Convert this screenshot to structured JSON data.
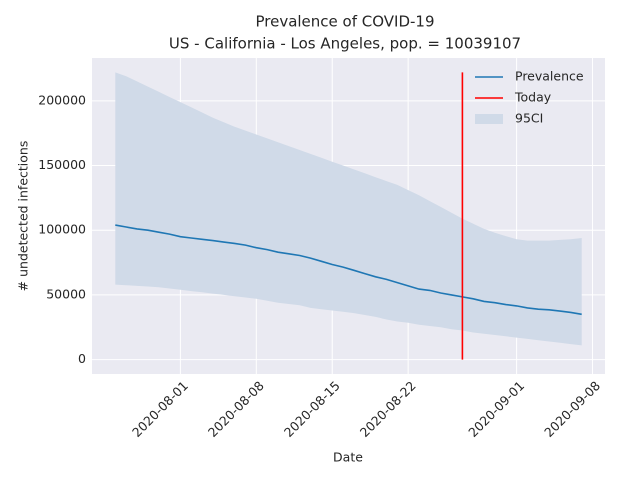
{
  "chart_data": {
    "type": "line",
    "title": "Prevalence of COVID-19",
    "subtitle": "US - California - Los Angeles, pop. = 10039107",
    "x_label": "Date",
    "y_label": "# undetected infections",
    "x": [
      "2020-07-26",
      "2020-07-27",
      "2020-07-28",
      "2020-07-29",
      "2020-07-30",
      "2020-07-31",
      "2020-08-01",
      "2020-08-02",
      "2020-08-03",
      "2020-08-04",
      "2020-08-05",
      "2020-08-06",
      "2020-08-07",
      "2020-08-08",
      "2020-08-09",
      "2020-08-10",
      "2020-08-11",
      "2020-08-12",
      "2020-08-13",
      "2020-08-14",
      "2020-08-15",
      "2020-08-16",
      "2020-08-17",
      "2020-08-18",
      "2020-08-19",
      "2020-08-20",
      "2020-08-21",
      "2020-08-22",
      "2020-08-23",
      "2020-08-24",
      "2020-08-25",
      "2020-08-26",
      "2020-08-27",
      "2020-08-28",
      "2020-08-29",
      "2020-08-30",
      "2020-08-31",
      "2020-09-01",
      "2020-09-02",
      "2020-09-03",
      "2020-09-04",
      "2020-09-05",
      "2020-09-06",
      "2020-09-07"
    ],
    "series": [
      {
        "name": "Prevalence",
        "color": "#1f77b4",
        "values": [
          104000,
          102500,
          101000,
          100000,
          98500,
          97000,
          95000,
          94000,
          93000,
          92000,
          90800,
          89800,
          88500,
          86500,
          85000,
          83000,
          81800,
          80500,
          78500,
          76000,
          73500,
          71500,
          69000,
          66500,
          64000,
          62000,
          59500,
          57000,
          54500,
          53500,
          51500,
          50000,
          48500,
          47000,
          45000,
          44000,
          42500,
          41500,
          40000,
          39000,
          38500,
          37500,
          36500,
          35000
        ]
      },
      {
        "name": "Today",
        "color": "#ff0000",
        "x": [
          "2020-08-27",
          "2020-08-27"
        ],
        "values": [
          0,
          222000
        ]
      },
      {
        "name": "95CI",
        "color": "#d0dae8",
        "lower": [
          58000,
          57500,
          57000,
          56500,
          56000,
          55000,
          54000,
          53000,
          52000,
          51000,
          50000,
          49000,
          48000,
          47000,
          45500,
          44000,
          43000,
          42000,
          40000,
          39000,
          38000,
          37000,
          36000,
          34500,
          33000,
          31000,
          29500,
          28500,
          27000,
          26000,
          25000,
          23500,
          22500,
          21000,
          20000,
          19000,
          18000,
          17000,
          16000,
          15000,
          14000,
          13000,
          12000,
          11000
        ],
        "upper": [
          222000,
          219000,
          215000,
          211000,
          207000,
          203000,
          199000,
          195000,
          191000,
          187000,
          183500,
          180000,
          177000,
          174000,
          171000,
          168000,
          165000,
          162000,
          159000,
          156000,
          153000,
          150000,
          147000,
          144000,
          141000,
          138000,
          135000,
          131000,
          127000,
          122500,
          118000,
          113500,
          109000,
          105000,
          101000,
          98000,
          95500,
          93000,
          92000,
          92000,
          92000,
          92500,
          93000,
          94000
        ]
      }
    ],
    "xlim": [
      "2020-07-23T20:24Z",
      "2020-09-09T03:36Z"
    ],
    "xticks": [
      "2020-08-01",
      "2020-08-08",
      "2020-08-15",
      "2020-08-22",
      "2020-09-01",
      "2020-09-08"
    ],
    "ylim": [
      -11100,
      233100
    ],
    "yticks": [
      0,
      50000,
      100000,
      150000,
      200000
    ],
    "grid": true,
    "legend": "upper right"
  }
}
